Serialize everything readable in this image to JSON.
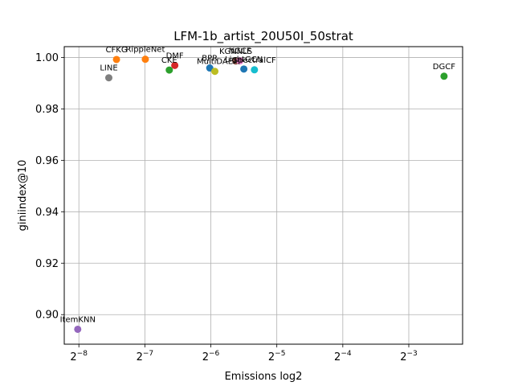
{
  "chart_data": {
    "type": "scatter",
    "title": "LFM-1b_artist_20U50I_50strat",
    "xlabel": "Emissions log2",
    "ylabel": "giniindex@10",
    "x_scale": "log2",
    "xlim": [
      0.00335,
      0.22
    ],
    "ylim": [
      0.8885,
      1.0042
    ],
    "grid": true,
    "x_ticks": [
      {
        "value": 0.00390625,
        "base": "2",
        "exp": "−8"
      },
      {
        "value": 0.0078125,
        "base": "2",
        "exp": "−7"
      },
      {
        "value": 0.015625,
        "base": "2",
        "exp": "−6"
      },
      {
        "value": 0.03125,
        "base": "2",
        "exp": "−5"
      },
      {
        "value": 0.0625,
        "base": "2",
        "exp": "−4"
      },
      {
        "value": 0.125,
        "base": "2",
        "exp": "−3"
      }
    ],
    "y_ticks": [
      {
        "value": 0.9,
        "label": "0.90"
      },
      {
        "value": 0.92,
        "label": "0.92"
      },
      {
        "value": 0.94,
        "label": "0.94"
      },
      {
        "value": 0.96,
        "label": "0.96"
      },
      {
        "value": 0.98,
        "label": "0.98"
      },
      {
        "value": 1.0,
        "label": "1.00"
      }
    ],
    "points": [
      {
        "label": "ItemKNN",
        "x": 0.00386,
        "y": 0.8943,
        "color": "#9467bd"
      },
      {
        "label": "LINE",
        "x": 0.00535,
        "y": 0.9921,
        "color": "#7f7f7f"
      },
      {
        "label": "CFKG",
        "x": 0.0058,
        "y": 0.9992,
        "color": "#ff7f0e"
      },
      {
        "label": "RippleNet",
        "x": 0.00785,
        "y": 0.9993,
        "color": "#ff7f0e"
      },
      {
        "label": "CKE",
        "x": 0.0101,
        "y": 0.9951,
        "color": "#2ca02c"
      },
      {
        "label": "DMF",
        "x": 0.0107,
        "y": 0.9969,
        "color": "#d62728"
      },
      {
        "label": "BPR",
        "x": 0.01545,
        "y": 0.9959,
        "color": "#1f77b4"
      },
      {
        "label": "MultiDAE",
        "x": 0.0163,
        "y": 0.9946,
        "color": "#bcbd22"
      },
      {
        "label": "KGNNLS",
        "x": 0.0203,
        "y": 0.9986,
        "color": "#8c564b"
      },
      {
        "label": "NGCF",
        "x": 0.0212,
        "y": 0.9987,
        "color": "#e377c2"
      },
      {
        "label": "LightGCN",
        "x": 0.0221,
        "y": 0.9955,
        "color": "#1f77b4"
      },
      {
        "label": "SpectralCF",
        "x": 0.0247,
        "y": 0.9952,
        "color": "#17becf"
      },
      {
        "label": "DGCF",
        "x": 0.181,
        "y": 0.9927,
        "color": "#2ca02c"
      }
    ]
  }
}
